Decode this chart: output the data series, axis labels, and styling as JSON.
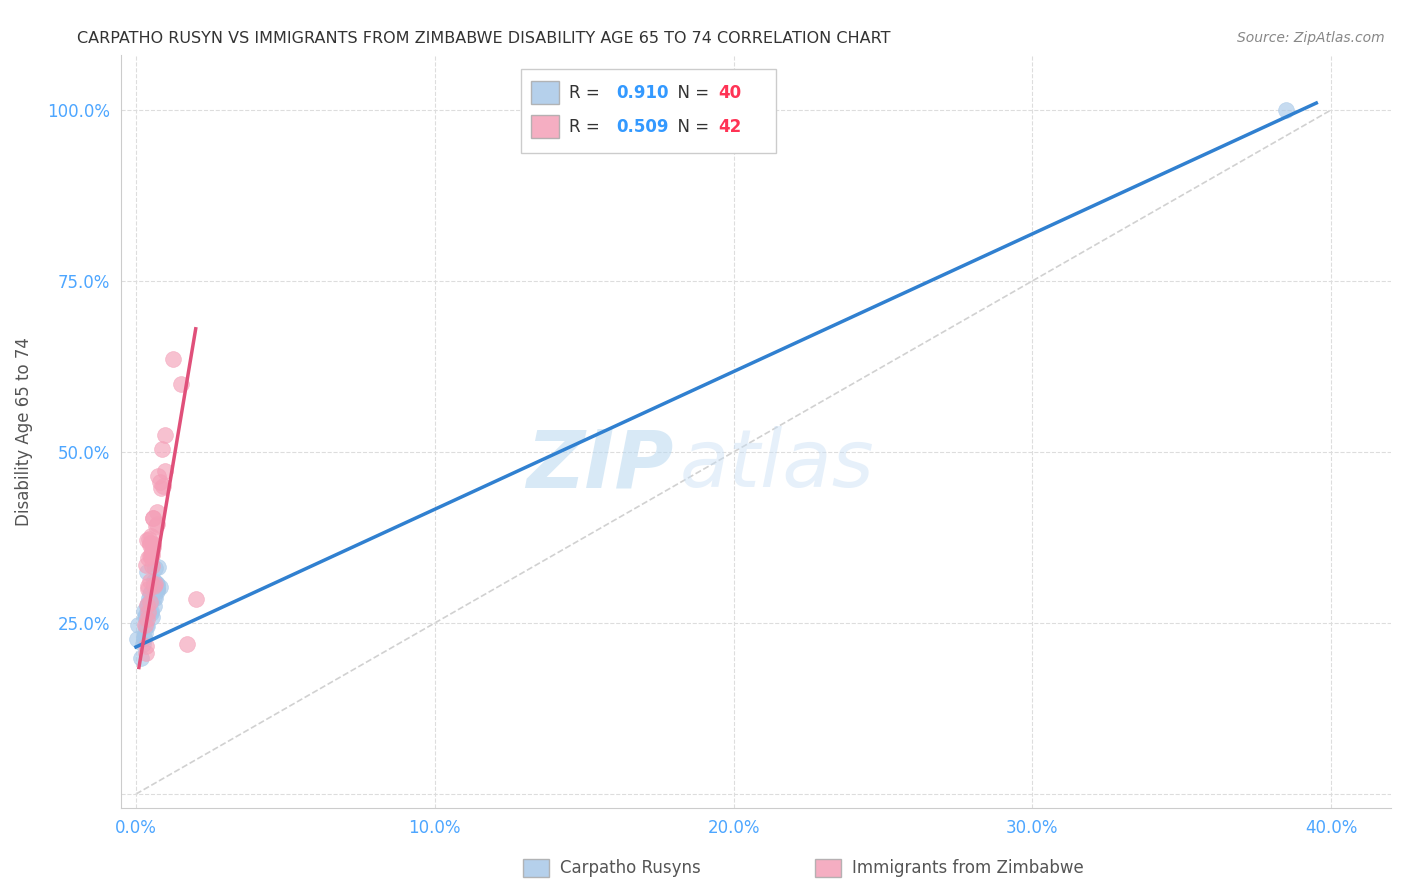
{
  "title": "CARPATHO RUSYN VS IMMIGRANTS FROM ZIMBABWE DISABILITY AGE 65 TO 74 CORRELATION CHART",
  "source": "Source: ZipAtlas.com",
  "xlabel_ticks": [
    "0.0%",
    "10.0%",
    "20.0%",
    "30.0%",
    "40.0%"
  ],
  "xlabel_tick_vals": [
    0.0,
    0.1,
    0.2,
    0.3,
    0.4
  ],
  "ylabel": "Disability Age 65 to 74",
  "ylabel_ticks": [
    "",
    "25.0%",
    "50.0%",
    "75.0%",
    "100.0%"
  ],
  "ylabel_tick_vals": [
    0.0,
    0.25,
    0.5,
    0.75,
    1.0
  ],
  "xmin": -0.005,
  "xmax": 0.42,
  "ymin": -0.02,
  "ymax": 1.08,
  "blue_R": 0.91,
  "blue_N": 40,
  "pink_R": 0.509,
  "pink_N": 42,
  "blue_color": "#a8c8e8",
  "pink_color": "#f4a0b8",
  "blue_line_color": "#3080d0",
  "pink_line_color": "#e0507a",
  "diagonal_color": "#cccccc",
  "watermark_zip": "ZIP",
  "watermark_atlas": "atlas",
  "legend_label_blue": "Carpatho Rusyns",
  "legend_label_pink": "Immigrants from Zimbabwe",
  "blue_scatter_x": [
    0.005,
    0.003,
    0.002,
    0.008,
    0.006,
    0.004,
    0.003,
    0.007,
    0.005,
    0.004,
    0.002,
    0.006,
    0.008,
    0.003,
    0.005,
    0.004,
    0.007,
    0.003,
    0.006,
    0.005,
    0.002,
    0.004,
    0.003,
    0.005,
    0.006,
    0.004,
    0.003,
    0.005,
    0.007,
    0.004,
    0.002,
    0.005,
    0.006,
    0.003,
    0.004,
    0.005,
    0.006,
    0.003,
    0.004,
    0.385
  ],
  "blue_scatter_y": [
    0.28,
    0.32,
    0.25,
    0.31,
    0.29,
    0.27,
    0.26,
    0.3,
    0.28,
    0.27,
    0.22,
    0.3,
    0.33,
    0.25,
    0.29,
    0.28,
    0.31,
    0.24,
    0.3,
    0.28,
    0.23,
    0.27,
    0.25,
    0.29,
    0.31,
    0.26,
    0.24,
    0.28,
    0.32,
    0.27,
    0.2,
    0.29,
    0.3,
    0.23,
    0.26,
    0.28,
    0.31,
    0.24,
    0.26,
    1.0
  ],
  "pink_scatter_x": [
    0.005,
    0.004,
    0.003,
    0.008,
    0.006,
    0.01,
    0.007,
    0.005,
    0.015,
    0.008,
    0.003,
    0.006,
    0.009,
    0.004,
    0.007,
    0.005,
    0.012,
    0.004,
    0.006,
    0.005,
    0.003,
    0.007,
    0.004,
    0.006,
    0.008,
    0.005,
    0.004,
    0.006,
    0.009,
    0.005,
    0.003,
    0.006,
    0.008,
    0.004,
    0.005,
    0.006,
    0.007,
    0.004,
    0.005,
    0.006,
    0.02,
    0.018
  ],
  "pink_scatter_y": [
    0.38,
    0.35,
    0.33,
    0.42,
    0.36,
    0.52,
    0.4,
    0.37,
    0.58,
    0.44,
    0.25,
    0.38,
    0.48,
    0.3,
    0.41,
    0.35,
    0.62,
    0.28,
    0.38,
    0.33,
    0.22,
    0.42,
    0.3,
    0.37,
    0.46,
    0.33,
    0.28,
    0.37,
    0.5,
    0.32,
    0.2,
    0.35,
    0.44,
    0.27,
    0.31,
    0.36,
    0.4,
    0.25,
    0.3,
    0.34,
    0.27,
    0.22
  ],
  "background_color": "#ffffff",
  "grid_color": "#dddddd",
  "tick_color": "#4da6ff",
  "title_color": "#333333",
  "source_color": "#888888",
  "ylabel_color": "#555555"
}
